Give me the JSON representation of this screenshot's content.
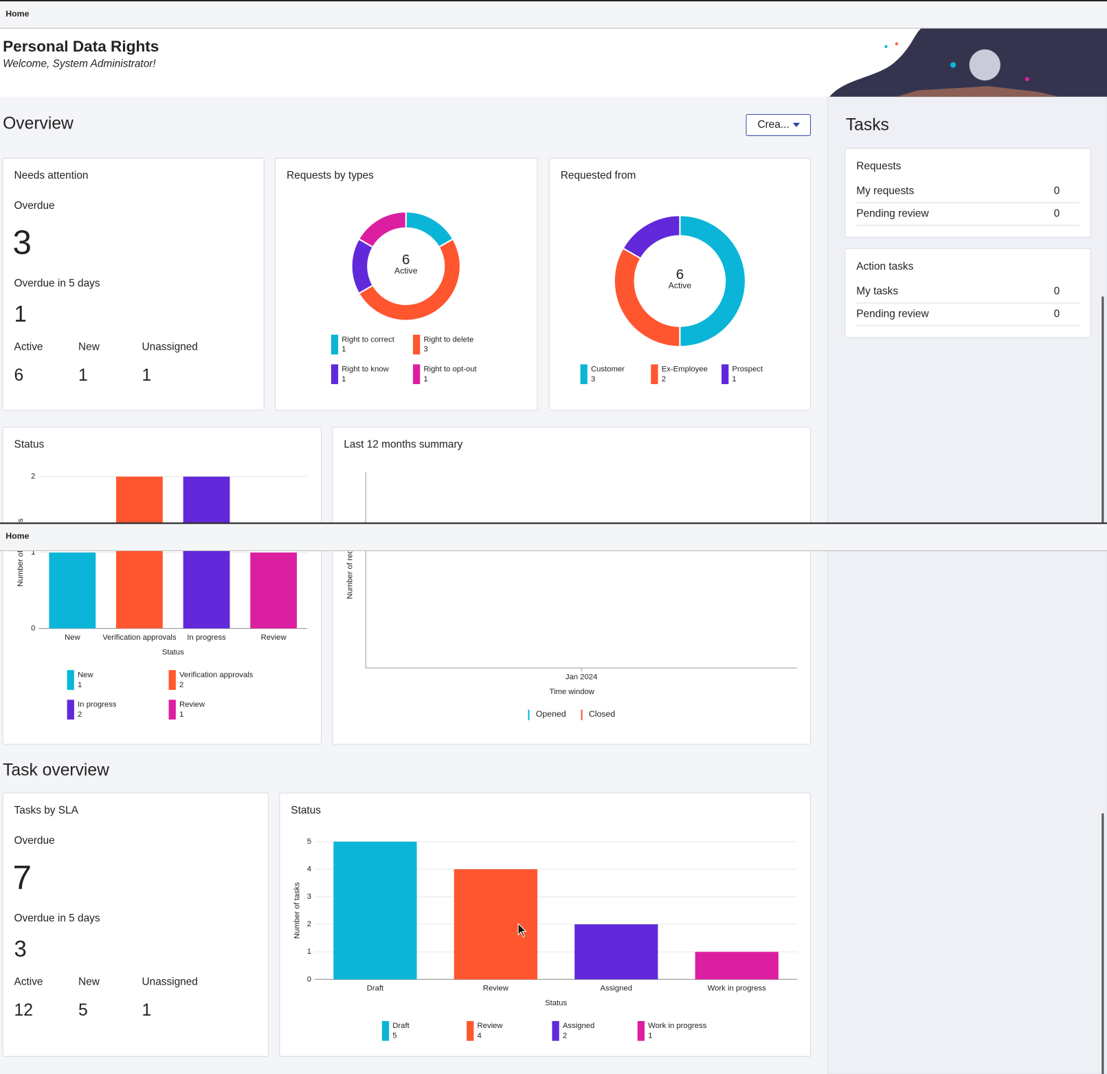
{
  "breadcrumb": "Home",
  "header": {
    "title": "Personal Data Rights",
    "subtitle": "Welcome, System Administrator!"
  },
  "overview": {
    "title": "Overview",
    "create_button": "Crea...",
    "needs_attention": {
      "title": "Needs attention",
      "overdue_label": "Overdue",
      "overdue": 3,
      "overdue_5_label": "Overdue in 5 days",
      "overdue_5": 1,
      "stats": [
        {
          "label": "Active",
          "value": 6
        },
        {
          "label": "New",
          "value": 1
        },
        {
          "label": "Unassigned",
          "value": 1
        }
      ]
    },
    "requests_by_types": {
      "type": "donut",
      "title": "Requests by types",
      "center_value": 6,
      "center_label": "Active",
      "categories": [
        "Right to correct",
        "Right to delete",
        "Right to know",
        "Right to opt-out"
      ],
      "values": [
        1,
        3,
        1,
        1
      ],
      "colors": [
        "#0bb5d8",
        "#ff5630",
        "#6129d9",
        "#dc1fa0"
      ]
    },
    "requested_from": {
      "type": "donut",
      "title": "Requested from",
      "center_value": 6,
      "center_label": "Active",
      "categories": [
        "Customer",
        "Ex-Employee",
        "Prospect"
      ],
      "values": [
        3,
        2,
        1
      ],
      "colors": [
        "#0bb5d8",
        "#ff5630",
        "#6129d9"
      ]
    },
    "status": {
      "type": "bar",
      "title": "Status",
      "categories": [
        "New",
        "Verification approvals",
        "In progress",
        "Review"
      ],
      "values": [
        1,
        2,
        2,
        1
      ],
      "colors": [
        "#0bb5d8",
        "#ff5630",
        "#6129d9",
        "#dc1fa0"
      ],
      "ylim": [
        0,
        2
      ],
      "yticks": [
        0,
        1,
        2
      ],
      "grid": true,
      "x_label": "Status",
      "y_label": "Number of requests"
    },
    "last_12_months": {
      "type": "line",
      "title": "Last 12 months summary",
      "categories": [
        "Jan 2024"
      ],
      "x_label": "Time window",
      "y_label": "Number of requests",
      "series": [
        {
          "name": "Opened",
          "color": "#0bb5d8"
        },
        {
          "name": "Closed",
          "color": "#ff5630"
        }
      ]
    }
  },
  "task_overview": {
    "title": "Task overview",
    "tasks_by_sla": {
      "title": "Tasks by SLA",
      "overdue_label": "Overdue",
      "overdue": 7,
      "overdue_5_label": "Overdue in 5 days",
      "overdue_5": 3,
      "stats": [
        {
          "label": "Active",
          "value": 12
        },
        {
          "label": "New",
          "value": 5
        },
        {
          "label": "Unassigned",
          "value": 1
        }
      ]
    },
    "status": {
      "type": "bar",
      "title": "Status",
      "categories": [
        "Draft",
        "Review",
        "Assigned",
        "Work in progress"
      ],
      "values": [
        5,
        4,
        2,
        1
      ],
      "colors": [
        "#0bb5d8",
        "#ff5630",
        "#6129d9",
        "#dc1fa0"
      ],
      "ylim": [
        0,
        5
      ],
      "yticks": [
        0,
        1,
        2,
        3,
        4,
        5
      ],
      "grid": true,
      "x_label": "Status",
      "y_label": "Number of tasks"
    }
  },
  "tasks_panel": {
    "title": "Tasks",
    "groups": [
      {
        "title": "Requests",
        "items": [
          {
            "label": "My requests",
            "count": 0
          },
          {
            "label": "Pending review",
            "count": 0
          }
        ]
      },
      {
        "title": "Action tasks",
        "items": [
          {
            "label": "My tasks",
            "count": 0
          },
          {
            "label": "Pending review",
            "count": 0
          }
        ]
      }
    ]
  }
}
